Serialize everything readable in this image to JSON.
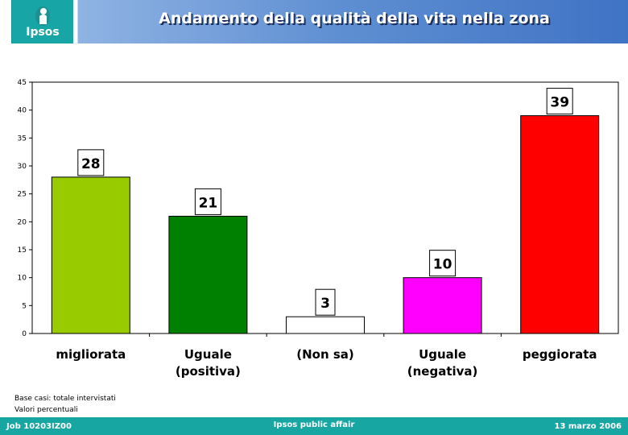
{
  "header": {
    "logo_text": "Ipsos",
    "title": "Andamento della qualità della vita nella zona"
  },
  "chart_data": {
    "type": "bar",
    "categories": [
      [
        "migliorata"
      ],
      [
        "Uguale",
        "(positiva)"
      ],
      [
        "(Non sa)"
      ],
      [
        "Uguale",
        "(negativa)"
      ],
      [
        "peggiorata"
      ]
    ],
    "values": [
      28,
      21,
      3,
      10,
      39
    ],
    "value_labels": [
      "28",
      "21",
      "3",
      "10",
      "39"
    ],
    "colors": [
      "#99cc00",
      "#008000",
      "#ffffff",
      "#ff00ff",
      "#ff0000"
    ],
    "ylim": [
      0,
      45
    ],
    "yticks": [
      0,
      5,
      10,
      15,
      20,
      25,
      30,
      35,
      40,
      45
    ],
    "grid": false,
    "legend": "none"
  },
  "notes": {
    "base": "Base casi: totale intervistati",
    "values": "Valori percentuali"
  },
  "footer": {
    "job": "Job 10203IZ00",
    "center": "Ipsos public affair",
    "date": "13 marzo 2006"
  }
}
